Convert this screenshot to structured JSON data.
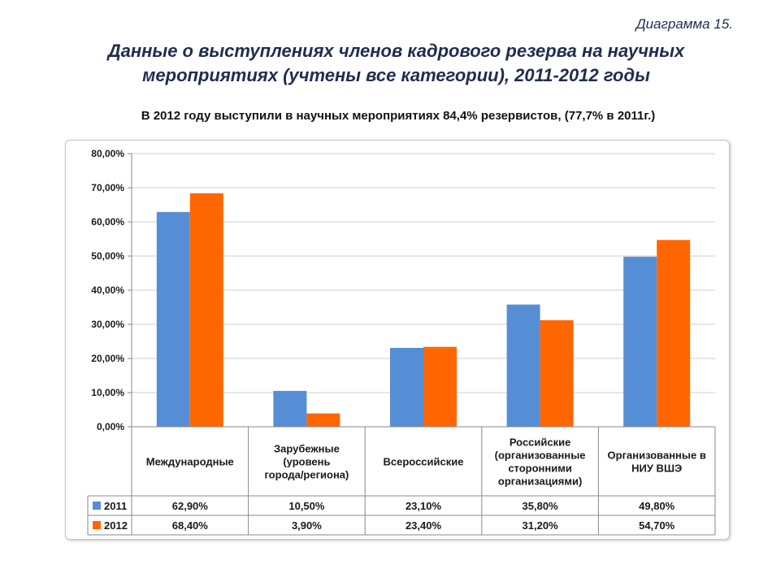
{
  "diagram_label": "Диаграмма 15.",
  "title_line1": "Данные о выступлениях членов кадрового резерва на научных",
  "title_line2": "мероприятиях (учтены все категории), 2011-2012 годы",
  "subtitle": "В 2012 году выступили в научных мероприятиях 84,4% резервистов, (77,7%  в 2011г.)",
  "chart_data": {
    "type": "bar",
    "categories": [
      [
        "Международные"
      ],
      [
        "Зарубежные",
        "(уровень",
        "города/региона)"
      ],
      [
        "Всероссийские"
      ],
      [
        "Российские",
        "(организованные",
        "сторонними",
        "организациями)"
      ],
      [
        "Организованные в",
        "НИУ ВШЭ"
      ]
    ],
    "series": [
      {
        "name": "2011",
        "color": "#558ed5",
        "values": [
          62.9,
          10.5,
          23.1,
          35.8,
          49.8
        ],
        "labels": [
          "62,90%",
          "10,50%",
          "23,10%",
          "35,80%",
          "49,80%"
        ]
      },
      {
        "name": "2012",
        "color": "#ff6600",
        "values": [
          68.4,
          3.9,
          23.4,
          31.2,
          54.7
        ],
        "labels": [
          "68,40%",
          "3,90%",
          "23,40%",
          "31,20%",
          "54,70%"
        ]
      }
    ],
    "y_ticks": [
      "0,00%",
      "10,00%",
      "20,00%",
      "30,00%",
      "40,00%",
      "50,00%",
      "60,00%",
      "70,00%",
      "80,00%"
    ],
    "ylim": [
      0,
      80
    ],
    "grid": true,
    "legend": "data-table"
  }
}
